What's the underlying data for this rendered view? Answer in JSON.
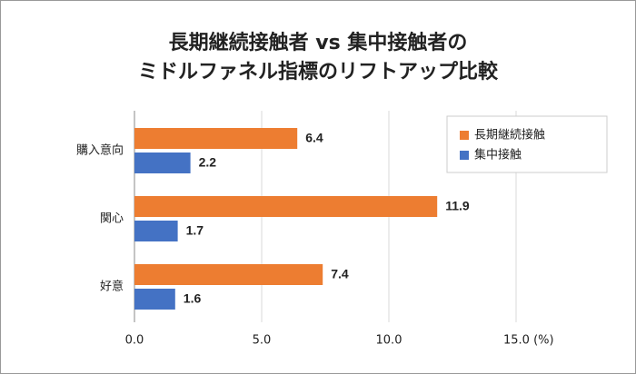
{
  "chart_data": {
    "type": "bar",
    "orientation": "horizontal",
    "title": "長期継続接触者 vs 集中接触者の",
    "subtitle": "ミドルファネル指標のリフトアップ比較",
    "categories": [
      "購入意向",
      "関心",
      "好意"
    ],
    "series": [
      {
        "name": "長期継続接触",
        "color": "#ed7d31",
        "values": [
          6.4,
          11.9,
          7.4
        ]
      },
      {
        "name": "集中接触",
        "color": "#4472c4",
        "values": [
          2.2,
          1.7,
          1.6
        ]
      }
    ],
    "xlim": [
      0,
      15
    ],
    "xticks": [
      {
        "value": 0,
        "label": "0.0"
      },
      {
        "value": 5,
        "label": "5.0"
      },
      {
        "value": 10,
        "label": "10.0"
      },
      {
        "value": 15,
        "label": "15.0 (%)"
      }
    ],
    "grid": true,
    "legend": "upper right"
  }
}
